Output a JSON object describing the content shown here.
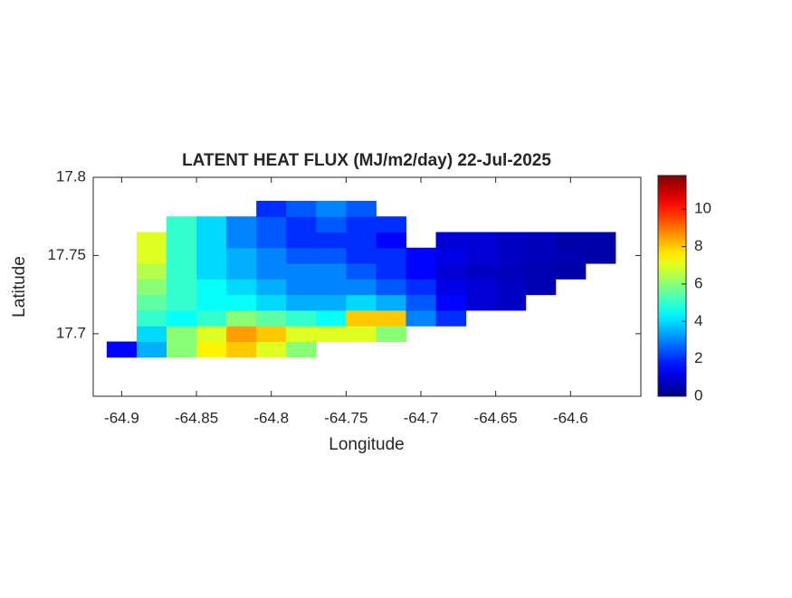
{
  "chart_data": {
    "type": "heatmap",
    "title": "LATENT HEAT FLUX (MJ/m2/day) 22-Jul-2025",
    "x_label": "Longitude",
    "y_label": "Latitude",
    "x": [
      -64.9,
      -64.88,
      -64.86,
      -64.84,
      -64.82,
      -64.8,
      -64.78,
      -64.76,
      -64.74,
      -64.72,
      -64.7,
      -64.68,
      -64.66,
      -64.64,
      -64.62,
      -64.6,
      -64.58
    ],
    "y": [
      17.69,
      17.7,
      17.71,
      17.72,
      17.73,
      17.74,
      17.75,
      17.76,
      17.77,
      17.78
    ],
    "z": [
      [
        1.5,
        3.5,
        6,
        7.5,
        8,
        7,
        6,
        null,
        null,
        null,
        null,
        null,
        null,
        null,
        null,
        null,
        null
      ],
      [
        null,
        4,
        6,
        7,
        8.5,
        8,
        7,
        7,
        7,
        6,
        null,
        null,
        null,
        null,
        null,
        null,
        null
      ],
      [
        null,
        5,
        4.5,
        5,
        6,
        5.5,
        5,
        4.5,
        8,
        8,
        3,
        2,
        null,
        null,
        null,
        null,
        null
      ],
      [
        null,
        5.5,
        5,
        4.5,
        4.5,
        4,
        3.5,
        3.5,
        4,
        3.5,
        2.5,
        1.5,
        1,
        0.8,
        null,
        null,
        null
      ],
      [
        null,
        6,
        5,
        4.5,
        4,
        3.5,
        3,
        3,
        3,
        2.5,
        2,
        1.2,
        1,
        0.8,
        0.6,
        null,
        null
      ],
      [
        null,
        6.5,
        5,
        4,
        3.5,
        3,
        3,
        3,
        2.5,
        2,
        1.5,
        1,
        0.8,
        0.7,
        0.6,
        0.5,
        null
      ],
      [
        null,
        7,
        5,
        4,
        3.5,
        3,
        2.5,
        2.5,
        2,
        2,
        1.5,
        1.2,
        1,
        0.8,
        0.7,
        0.6,
        0.5
      ],
      [
        null,
        7,
        5,
        4,
        3,
        2.5,
        2,
        2,
        2,
        1.5,
        null,
        1,
        1,
        0.8,
        0.7,
        0.5,
        0.5
      ],
      [
        null,
        null,
        5,
        4,
        3,
        2.5,
        2,
        2.5,
        2,
        2,
        null,
        null,
        null,
        null,
        null,
        null,
        null
      ],
      [
        null,
        null,
        null,
        null,
        null,
        2,
        2.5,
        3,
        2.5,
        null,
        null,
        null,
        null,
        null,
        null,
        null,
        null
      ]
    ],
    "xlim": [
      -64.919,
      -64.553
    ],
    "ylim": [
      17.66,
      17.8
    ],
    "xticks": [
      -64.9,
      -64.85,
      -64.8,
      -64.75,
      -64.7,
      -64.65,
      -64.6
    ],
    "yticks": [
      17.7,
      17.75,
      17.8
    ],
    "clim": [
      0,
      11.8
    ],
    "cticks": [
      0,
      2,
      4,
      6,
      8,
      10
    ],
    "colormap": "jet"
  }
}
